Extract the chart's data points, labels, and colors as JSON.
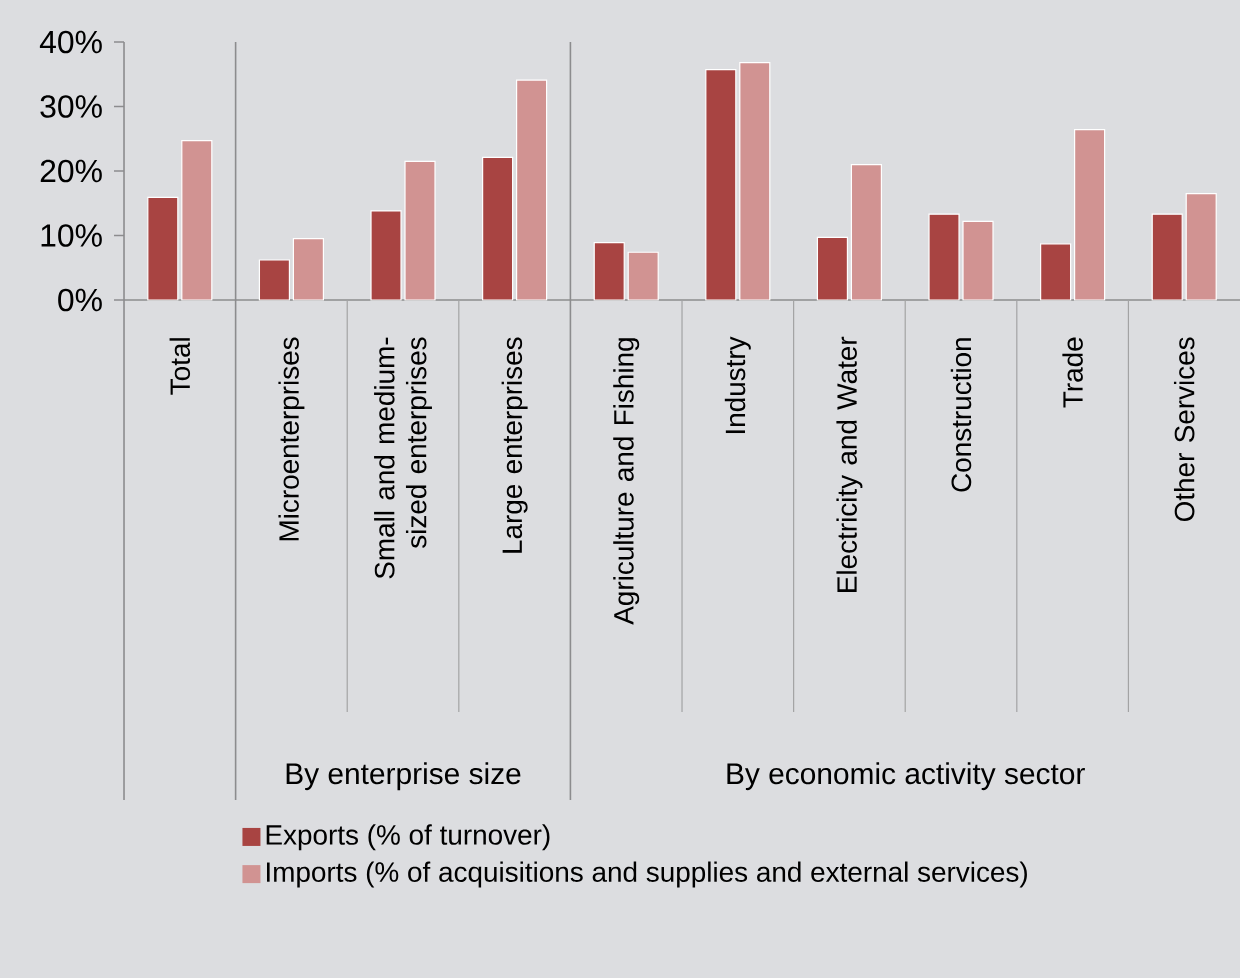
{
  "chart_data": {
    "type": "bar",
    "categories": [
      "Total",
      "Microenterprises",
      "Small and medium-sized enterprises",
      "Large enterprises",
      "Agriculture and Fishing",
      "Industry",
      "Electricity and Water",
      "Construction",
      "Trade",
      "Other Services"
    ],
    "series": [
      {
        "name": "Exports (% of turnover)",
        "color": "#a84442",
        "values": [
          15.9,
          6.2,
          13.8,
          22.1,
          8.9,
          35.7,
          9.7,
          13.3,
          8.7,
          13.3
        ]
      },
      {
        "name": "Imports (% of acquisitions and supplies and external services)",
        "color": "#d19392",
        "values": [
          24.7,
          9.5,
          21.5,
          34.1,
          7.4,
          36.8,
          21.0,
          12.2,
          26.4,
          16.5
        ]
      }
    ],
    "ylim": [
      0,
      40
    ],
    "yticks": [
      {
        "value": 0,
        "label": "0%"
      },
      {
        "value": 10,
        "label": "10%"
      },
      {
        "value": 20,
        "label": "20%"
      },
      {
        "value": 30,
        "label": "30%"
      },
      {
        "value": 40,
        "label": "40%"
      }
    ],
    "annotations": [
      "By enterprise size",
      "By economic activity sector"
    ],
    "grid": false,
    "legend": "bottom"
  }
}
